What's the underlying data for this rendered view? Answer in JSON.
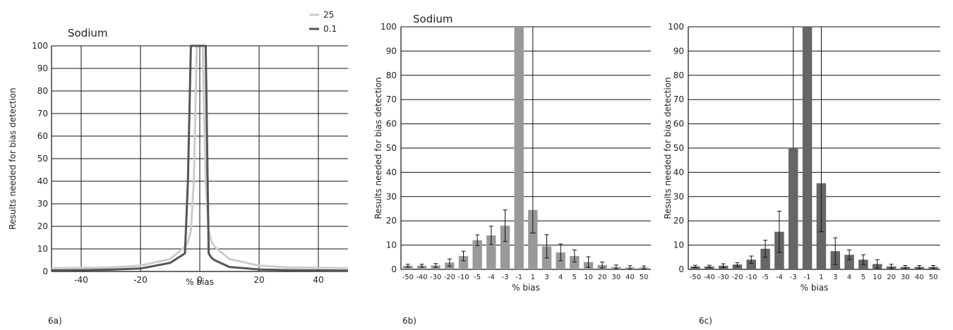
{
  "chart_data": [
    {
      "panel_label": "6a)",
      "type": "line",
      "title": "Sodium",
      "xlabel": "% bias",
      "ylabel": "Results needed for bias detection",
      "xlim": [
        -50,
        50
      ],
      "ylim": [
        0,
        100
      ],
      "xticks": [
        -40,
        -20,
        0,
        20,
        40
      ],
      "yticks": [
        0,
        10,
        20,
        30,
        40,
        50,
        60,
        70,
        80,
        90,
        100
      ],
      "legend_position": "top-right",
      "grid": true,
      "series": [
        {
          "name": "25",
          "color": "#cccccc",
          "x": [
            -50,
            -40,
            -30,
            -20,
            -10,
            -5,
            -4,
            -3,
            -2,
            -1,
            1,
            2,
            3,
            4,
            5,
            10,
            20,
            30,
            40,
            50
          ],
          "y": [
            1.5,
            1.6,
            1.8,
            2.6,
            5.5,
            11,
            13,
            18,
            40,
            100,
            100,
            40,
            18,
            13,
            11,
            5.5,
            2.6,
            1.8,
            1.6,
            1.5
          ]
        },
        {
          "name": "0.1",
          "color": "#555555",
          "x": [
            -50,
            -40,
            -30,
            -20,
            -10,
            -5,
            -4,
            -3,
            -2,
            -1,
            1,
            2,
            3,
            4,
            5,
            10,
            20,
            30,
            40,
            50
          ],
          "y": [
            0.5,
            0.6,
            0.8,
            1.3,
            3.8,
            8,
            40,
            100,
            100,
            100,
            100,
            100,
            8,
            6,
            5,
            2,
            0.9,
            0.6,
            0.5,
            0.4
          ]
        }
      ]
    },
    {
      "panel_label": "6b)",
      "type": "bar",
      "title": "Sodium",
      "xlabel": "% bias",
      "ylabel": "Results needed for bias detection",
      "ylim": [
        0,
        100
      ],
      "yticks": [
        0,
        10,
        20,
        30,
        40,
        50,
        60,
        70,
        80,
        90,
        100
      ],
      "grid": true,
      "bar_color": "#999999",
      "categories": [
        "-50",
        "-40",
        "-30",
        "-20",
        "-10",
        "-5",
        "-4",
        "-3",
        "-1",
        "1",
        "3",
        "4",
        "5",
        "10",
        "20",
        "30",
        "40",
        "50"
      ],
      "values": [
        1.5,
        1.5,
        1.6,
        2.8,
        5.5,
        12,
        14,
        18,
        100,
        24.5,
        9.5,
        7,
        5.5,
        3,
        1.8,
        1,
        0.8,
        0.8
      ],
      "errors": [
        0.6,
        0.6,
        0.8,
        1.5,
        2,
        2.2,
        3.8,
        6.5,
        0,
        9.5,
        4.8,
        3.5,
        2.5,
        2.2,
        1.2,
        0.8,
        0.7,
        0.6
      ],
      "error_line_indices": [
        8,
        9
      ]
    },
    {
      "panel_label": "6c)",
      "type": "bar",
      "title": "",
      "xlabel": "% bias",
      "ylabel": "Results needed for bias detection",
      "ylim": [
        0,
        100
      ],
      "yticks": [
        0,
        10,
        20,
        30,
        40,
        50,
        60,
        70,
        80,
        90,
        100
      ],
      "grid": true,
      "bar_color": "#666666",
      "categories": [
        "-50",
        "-40",
        "-30",
        "-20",
        "-10",
        "-5",
        "-4",
        "-3",
        "-1",
        "1",
        "3",
        "4",
        "5",
        "10",
        "20",
        "30",
        "40",
        "50"
      ],
      "values": [
        1.2,
        1.2,
        1.5,
        2,
        4,
        8.5,
        15.5,
        50,
        100,
        35.5,
        7.5,
        6,
        4,
        2.2,
        1.2,
        1,
        1,
        1
      ],
      "errors": [
        0.5,
        0.5,
        0.8,
        0.8,
        1.5,
        3.5,
        8.5,
        0,
        0,
        20,
        5.5,
        2,
        2,
        1.8,
        0.9,
        0.6,
        0.6,
        0.6
      ],
      "error_line_indices": [
        7,
        8,
        9
      ]
    }
  ]
}
